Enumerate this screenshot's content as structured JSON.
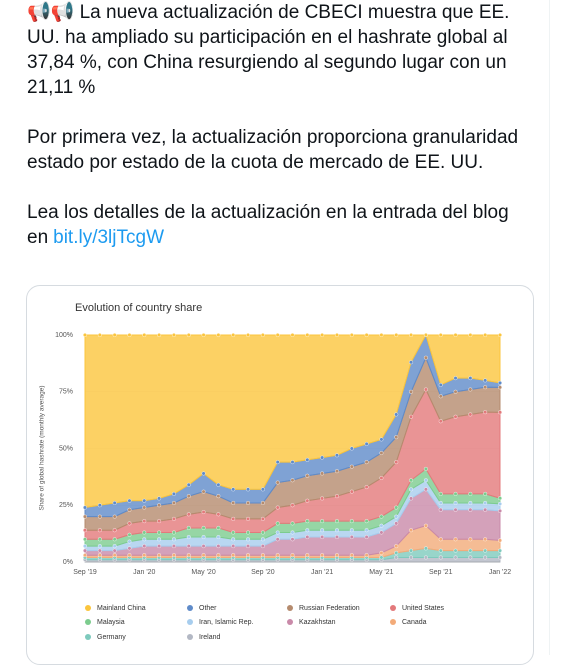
{
  "tweet": {
    "paragraphs": [
      "📢📢 La nueva actualización de CBECI muestra que EE. UU. ha ampliado su participación en el hashrate global al 37,84 %, con China resurgiendo al segundo lugar con un 21,11 %",
      "Por primera vez, la actualización proporciona granularidad estado por estado de la cuota de mercado de EE. UU.",
      "Lea los detalles de la actualización en la entrada del blog en"
    ],
    "link": "bit.ly/3ljTcgW"
  },
  "chart_data": {
    "type": "stacked_area",
    "title": "Evolution of country share",
    "y_label": "Share of global hashrate (monthly average)",
    "categories": [
      "Sep '19",
      null,
      null,
      null,
      "Jan '20",
      null,
      null,
      null,
      "May '20",
      null,
      null,
      null,
      "Sep '20",
      null,
      null,
      null,
      "Jan '21",
      null,
      null,
      null,
      "May '21",
      null,
      null,
      null,
      "Sep '21",
      null,
      null,
      null,
      "Jan '22"
    ],
    "ylim": [
      0,
      100
    ],
    "yticks": [
      {
        "value": 0,
        "label": "0%"
      },
      {
        "value": 25,
        "label": "25%"
      },
      {
        "value": 50,
        "label": "50%"
      },
      {
        "value": 75,
        "label": "75%"
      },
      {
        "value": 100,
        "label": "100%"
      }
    ],
    "grid": true,
    "legend": "bottom",
    "series": [
      {
        "name": "Mainland China",
        "color": "#fbc53d",
        "values": [
          76,
          75,
          74,
          73,
          73,
          72,
          70,
          66,
          61,
          66,
          68,
          68,
          68,
          56,
          56,
          55,
          54,
          53,
          50,
          48,
          46,
          35,
          12,
          0,
          22,
          19,
          19,
          20,
          21.11
        ]
      },
      {
        "name": "Other",
        "color": "#5f8bc9",
        "values": [
          4,
          5,
          6,
          4,
          3,
          3,
          4,
          5,
          8,
          5,
          6,
          6,
          6,
          9,
          8,
          7,
          7,
          7,
          8,
          8,
          6,
          10,
          13,
          10,
          5,
          6,
          5,
          3,
          1.95
        ]
      },
      {
        "name": "Russian Federation",
        "color": "#b58b6e",
        "values": [
          6,
          6,
          6,
          6,
          6,
          7,
          7,
          8,
          9,
          8,
          7,
          7,
          7,
          11,
          11,
          11,
          11,
          11,
          11,
          11,
          11,
          11,
          11,
          14,
          11,
          11,
          11,
          11,
          11
        ]
      },
      {
        "name": "United States",
        "color": "#e3797b",
        "values": [
          4,
          4,
          4,
          5,
          5,
          5,
          6,
          6,
          7,
          6,
          6,
          6,
          6,
          7,
          8,
          9,
          10,
          11,
          13,
          15,
          17,
          20,
          28,
          35,
          32,
          34,
          35,
          36,
          37.84
        ]
      },
      {
        "name": "Malaysia",
        "color": "#7ccc8e",
        "values": [
          3,
          3,
          3,
          3,
          3,
          3,
          3,
          4,
          4,
          4,
          3,
          3,
          3,
          4,
          4,
          4,
          4,
          4,
          4,
          4,
          4,
          4,
          4,
          5,
          4,
          4,
          4,
          4,
          2.5
        ]
      },
      {
        "name": "Iran, Islamic Rep.",
        "color": "#a7cdee",
        "values": [
          2,
          2,
          2,
          3,
          3,
          3,
          3,
          4,
          4,
          4,
          3,
          3,
          3,
          3,
          3,
          3,
          3,
          3,
          3,
          3,
          3,
          3,
          4,
          4,
          3,
          3,
          3,
          3,
          3.1
        ]
      },
      {
        "name": "Kazakhstan",
        "color": "#c98aa9",
        "values": [
          2,
          2,
          2,
          3,
          4,
          4,
          4,
          4,
          4,
          4,
          4,
          4,
          4,
          7,
          7,
          8,
          8,
          8,
          8,
          8,
          9,
          10,
          14,
          16,
          13,
          13,
          13,
          13,
          13
        ]
      },
      {
        "name": "Canada",
        "color": "#f3ab79",
        "values": [
          1,
          1,
          1,
          1,
          1,
          1,
          1,
          1,
          1,
          1,
          1,
          1,
          1,
          1,
          1,
          1,
          1,
          1,
          1,
          1,
          2,
          3,
          9,
          10,
          5,
          5,
          5,
          5,
          4.5
        ]
      },
      {
        "name": "Germany",
        "color": "#7ecabd",
        "values": [
          1,
          1,
          1,
          1,
          1,
          1,
          1,
          1,
          1,
          1,
          1,
          1,
          1,
          1,
          1,
          1,
          1,
          1,
          1,
          1,
          1,
          2,
          3,
          4,
          3,
          3,
          3,
          3,
          3
        ]
      },
      {
        "name": "Ireland",
        "color": "#b3b8c4",
        "values": [
          1,
          1,
          1,
          1,
          1,
          1,
          1,
          1,
          1,
          1,
          1,
          1,
          1,
          1,
          1,
          1,
          1,
          1,
          1,
          1,
          1,
          2,
          2,
          2,
          2,
          2,
          2,
          2,
          2
        ]
      }
    ]
  }
}
